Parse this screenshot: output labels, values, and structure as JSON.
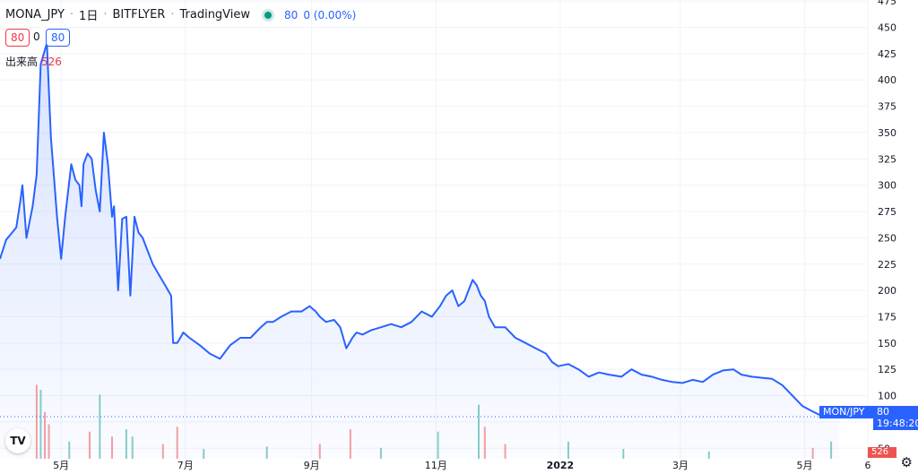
{
  "header": {
    "symbol": "MONA_JPY",
    "interval": "1日",
    "exchange": "BITFLYER",
    "source": "TradingView",
    "last": "80",
    "change": "0 (0.00%)"
  },
  "quote": {
    "sell": "80",
    "spread": "0",
    "buy": "80"
  },
  "volume": {
    "label": "出来高",
    "value": "526"
  },
  "price_badge": {
    "symbol": "MON/JPY",
    "price": "80",
    "time": "19:48:20"
  },
  "volume_badge": "526",
  "colors": {
    "line": "#2962ff",
    "up": "#26a69a",
    "down": "#ef5350",
    "grid": "#f0f3fa",
    "badge": "#2962ff"
  },
  "chart_data": {
    "type": "area",
    "ylim": [
      40,
      476
    ],
    "y_ticks": [
      50,
      75,
      100,
      125,
      150,
      175,
      200,
      225,
      250,
      275,
      300,
      325,
      350,
      375,
      400,
      425,
      450,
      475
    ],
    "x_ticks": [
      {
        "label": "5月",
        "x": "2021-05-01"
      },
      {
        "label": "7月",
        "x": "2021-07-01"
      },
      {
        "label": "9月",
        "x": "2021-09-01"
      },
      {
        "label": "11月",
        "x": "2021-11-01"
      },
      {
        "label": "2022",
        "x": "2022-01-01"
      },
      {
        "label": "3月",
        "x": "2022-03-01"
      },
      {
        "label": "5月",
        "x": "2022-05-01"
      },
      {
        "label": "6",
        "x": "2022-06-01"
      }
    ],
    "xlim": [
      "2021-04-01",
      "2022-06-01"
    ],
    "series": [
      {
        "x": [
          "2021-04-01",
          "2021-04-04",
          "2021-04-07",
          "2021-04-09",
          "2021-04-11",
          "2021-04-12",
          "2021-04-14",
          "2021-04-17",
          "2021-04-19",
          "2021-04-21",
          "2021-04-24",
          "2021-04-26",
          "2021-04-27",
          "2021-04-29",
          "2021-05-01",
          "2021-05-03",
          "2021-05-06",
          "2021-05-08",
          "2021-05-10",
          "2021-05-11",
          "2021-05-12",
          "2021-05-14",
          "2021-05-16",
          "2021-05-18",
          "2021-05-20",
          "2021-05-22",
          "2021-05-24",
          "2021-05-26",
          "2021-05-27",
          "2021-05-29",
          "2021-05-31",
          "2021-06-02",
          "2021-06-04",
          "2021-06-06",
          "2021-06-08",
          "2021-06-10",
          "2021-06-12",
          "2021-06-15",
          "2021-06-18",
          "2021-06-21",
          "2021-06-24",
          "2021-06-25",
          "2021-06-27",
          "2021-06-30",
          "2021-07-03",
          "2021-07-08",
          "2021-07-13",
          "2021-07-18",
          "2021-07-23",
          "2021-07-28",
          "2021-08-02",
          "2021-08-07",
          "2021-08-10",
          "2021-08-13",
          "2021-08-17",
          "2021-08-22",
          "2021-08-27",
          "2021-08-31",
          "2021-09-03",
          "2021-09-05",
          "2021-09-08",
          "2021-09-12",
          "2021-09-15",
          "2021-09-18",
          "2021-09-21",
          "2021-09-23",
          "2021-09-26",
          "2021-09-30",
          "2021-10-05",
          "2021-10-10",
          "2021-10-15",
          "2021-10-20",
          "2021-10-25",
          "2021-10-30",
          "2021-11-03",
          "2021-11-06",
          "2021-11-09",
          "2021-11-12",
          "2021-11-15",
          "2021-11-17",
          "2021-11-19",
          "2021-11-21",
          "2021-11-23",
          "2021-11-25",
          "2021-11-27",
          "2021-11-30",
          "2021-12-05",
          "2021-12-10",
          "2021-12-15",
          "2021-12-20",
          "2021-12-25",
          "2021-12-28",
          "2021-12-31",
          "2022-01-05",
          "2022-01-10",
          "2022-01-15",
          "2022-01-20",
          "2022-01-25",
          "2022-01-31",
          "2022-02-05",
          "2022-02-10",
          "2022-02-15",
          "2022-02-20",
          "2022-02-25",
          "2022-03-02",
          "2022-03-07",
          "2022-03-12",
          "2022-03-17",
          "2022-03-22",
          "2022-03-27",
          "2022-03-31",
          "2022-04-05",
          "2022-04-10",
          "2022-04-15",
          "2022-04-20",
          "2022-04-25",
          "2022-04-30",
          "2022-05-05",
          "2022-05-08",
          "2022-05-11",
          "2022-05-14",
          "2022-05-18"
        ],
        "y": [
          230,
          248,
          255,
          260,
          285,
          300,
          250,
          280,
          310,
          415,
          435,
          345,
          320,
          270,
          230,
          270,
          320,
          305,
          300,
          280,
          320,
          330,
          325,
          295,
          275,
          350,
          320,
          270,
          280,
          200,
          268,
          270,
          195,
          270,
          255,
          250,
          240,
          225,
          215,
          205,
          195,
          150,
          150,
          160,
          155,
          148,
          140,
          135,
          148,
          155,
          155,
          165,
          170,
          170,
          175,
          180,
          180,
          185,
          180,
          175,
          170,
          172,
          165,
          145,
          155,
          160,
          158,
          162,
          165,
          168,
          165,
          170,
          180,
          175,
          185,
          195,
          200,
          185,
          190,
          200,
          210,
          205,
          195,
          190,
          175,
          165,
          165,
          155,
          150,
          145,
          140,
          132,
          128,
          130,
          125,
          118,
          122,
          120,
          118,
          125,
          120,
          118,
          115,
          113,
          112,
          115,
          113,
          120,
          124,
          125,
          120,
          118,
          117,
          116,
          110,
          100,
          90,
          85,
          82,
          80,
          80,
          80
        ]
      }
    ],
    "volume_series": [
      {
        "x": "2021-04-19",
        "value": 150,
        "dir": "down"
      },
      {
        "x": "2021-04-21",
        "value": 140,
        "dir": "up"
      },
      {
        "x": "2021-04-23",
        "value": 95,
        "dir": "down"
      },
      {
        "x": "2021-04-25",
        "value": 70,
        "dir": "down"
      },
      {
        "x": "2021-05-05",
        "value": 35,
        "dir": "up"
      },
      {
        "x": "2021-05-15",
        "value": 55,
        "dir": "down"
      },
      {
        "x": "2021-05-20",
        "value": 130,
        "dir": "up"
      },
      {
        "x": "2021-05-26",
        "value": 45,
        "dir": "down"
      },
      {
        "x": "2021-06-02",
        "value": 60,
        "dir": "up"
      },
      {
        "x": "2021-06-05",
        "value": 45,
        "dir": "up"
      },
      {
        "x": "2021-06-20",
        "value": 30,
        "dir": "down"
      },
      {
        "x": "2021-06-27",
        "value": 65,
        "dir": "down"
      },
      {
        "x": "2021-07-10",
        "value": 20,
        "dir": "up"
      },
      {
        "x": "2021-08-10",
        "value": 25,
        "dir": "up"
      },
      {
        "x": "2021-09-05",
        "value": 30,
        "dir": "down"
      },
      {
        "x": "2021-09-20",
        "value": 60,
        "dir": "down"
      },
      {
        "x": "2021-10-05",
        "value": 22,
        "dir": "up"
      },
      {
        "x": "2021-11-02",
        "value": 55,
        "dir": "up"
      },
      {
        "x": "2021-11-22",
        "value": 110,
        "dir": "up"
      },
      {
        "x": "2021-11-25",
        "value": 65,
        "dir": "down"
      },
      {
        "x": "2021-12-05",
        "value": 30,
        "dir": "down"
      },
      {
        "x": "2022-01-05",
        "value": 35,
        "dir": "up"
      },
      {
        "x": "2022-02-01",
        "value": 20,
        "dir": "up"
      },
      {
        "x": "2022-03-15",
        "value": 15,
        "dir": "up"
      },
      {
        "x": "2022-05-05",
        "value": 22,
        "dir": "down"
      },
      {
        "x": "2022-05-14",
        "value": 35,
        "dir": "up"
      }
    ]
  }
}
